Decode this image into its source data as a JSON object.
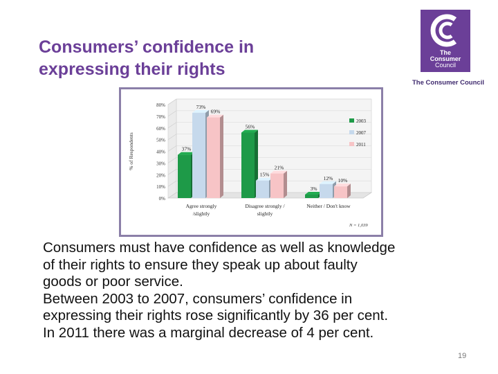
{
  "slide": {
    "title_line1": "Consumers’ confidence in",
    "title_line2": "expressing their rights",
    "logo": {
      "line1": "The",
      "line2": "Consumer",
      "line3": "Council",
      "name": "The Consumer Council",
      "color": "#6b3f98"
    },
    "body_lines": [
      "Consumers must have confidence as well as knowledge",
      "of their rights to ensure they speak up about faulty",
      "goods or poor service.",
      "Between 2003 to 2007, consumers’ confidence in",
      "expressing their rights rose significantly by 36 per cent.",
      "In 2011 there was a marginal decrease of 4 per cent."
    ],
    "page_number": "19"
  },
  "chart_data": {
    "type": "bar",
    "categories": [
      "Agree strongly / slightly",
      "Disagree strongly / slightly",
      "Neither / Don't know"
    ],
    "category_label_lines": [
      [
        "Agree strongly",
        "/slightly"
      ],
      [
        "Disagree strongly /",
        "slightly"
      ],
      [
        "Neither / Don't know"
      ]
    ],
    "series": [
      {
        "name": "2003",
        "values": [
          37,
          56,
          3
        ],
        "labels": [
          "37%",
          "56%",
          "3%"
        ],
        "color": "#1e9a48"
      },
      {
        "name": "2007",
        "values": [
          73,
          15,
          12
        ],
        "labels": [
          "73%",
          "15%",
          "12%"
        ],
        "color": "#c6d9ec"
      },
      {
        "name": "2011",
        "values": [
          69,
          21,
          10
        ],
        "labels": [
          "69%",
          "21%",
          "10%"
        ],
        "color": "#f7c4c6"
      }
    ],
    "ylabel": "% of Respondents",
    "yticks": [
      "0%",
      "10%",
      "20%",
      "30%",
      "40%",
      "50%",
      "60%",
      "70%",
      "80%"
    ],
    "ylim": [
      0,
      80
    ],
    "footnote": "N = 1,039",
    "legend_position": "right",
    "style": "3d"
  }
}
